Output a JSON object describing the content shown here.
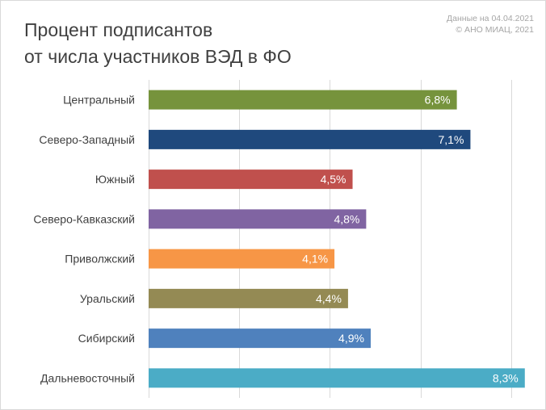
{
  "chart_data": {
    "type": "bar",
    "orientation": "horizontal",
    "title_lines": [
      "Процент подписантов",
      "от числа участников ВЭД в ФО"
    ],
    "source_lines": [
      "Данные на 04.04.2021",
      "© АНО МИАЦ, 2021"
    ],
    "categories": [
      "Центральный",
      "Северо-Западный",
      "Южный",
      "Северо-Кавказский",
      "Приволжский",
      "Уральский",
      "Сибирский",
      "Дальневосточный"
    ],
    "values": [
      6.8,
      7.1,
      4.5,
      4.8,
      4.1,
      4.4,
      4.9,
      8.3
    ],
    "value_labels": [
      "6,8%",
      "7,1%",
      "4,5%",
      "4,8%",
      "4,1%",
      "4,4%",
      "4,9%",
      "8,3%"
    ],
    "colors": [
      "#76933c",
      "#1f497d",
      "#c0504d",
      "#8064a2",
      "#f79646",
      "#948a54",
      "#4f81bd",
      "#4bacc6"
    ],
    "xlim": [
      0,
      8.5
    ],
    "grid_step": 2,
    "vertical_grid": true,
    "legend": "none"
  }
}
